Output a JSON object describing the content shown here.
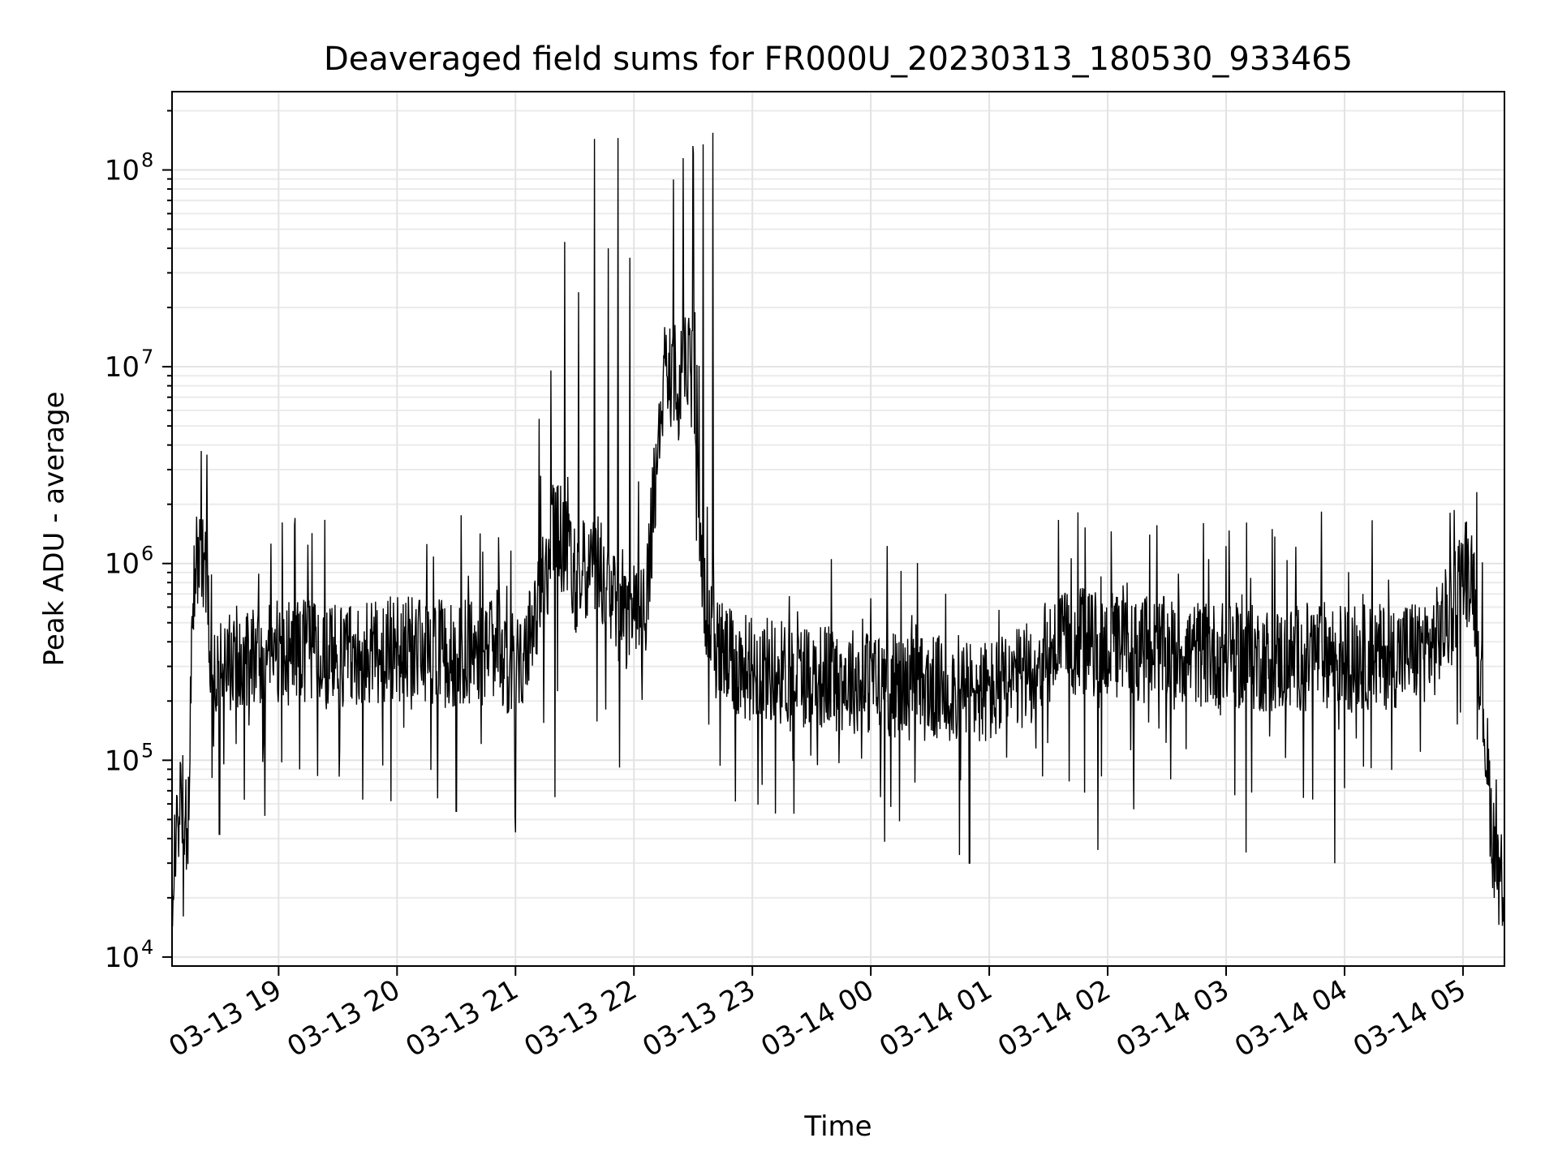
{
  "chart_data": {
    "type": "line",
    "title": "Deaveraged field sums for FR000U_20230313_180530_933465",
    "xlabel": "Time",
    "ylabel": "Peak ADU - average",
    "y_scale": "log",
    "ylim": [
      9000,
      250000000
    ],
    "xlim": [
      "2023-03-13 18:06",
      "2023-03-14 05:21"
    ],
    "grid": true,
    "line_color": "#000000",
    "x_ticks": [
      {
        "t": "2023-03-13 19:00",
        "label": "03-13 19"
      },
      {
        "t": "2023-03-13 20:00",
        "label": "03-13 20"
      },
      {
        "t": "2023-03-13 21:00",
        "label": "03-13 21"
      },
      {
        "t": "2023-03-13 22:00",
        "label": "03-13 22"
      },
      {
        "t": "2023-03-13 23:00",
        "label": "03-13 23"
      },
      {
        "t": "2023-03-14 00:00",
        "label": "03-14 00"
      },
      {
        "t": "2023-03-14 01:00",
        "label": "03-14 01"
      },
      {
        "t": "2023-03-14 02:00",
        "label": "03-14 02"
      },
      {
        "t": "2023-03-14 03:00",
        "label": "03-14 03"
      },
      {
        "t": "2023-03-14 04:00",
        "label": "03-14 04"
      },
      {
        "t": "2023-03-14 05:00",
        "label": "03-14 05"
      }
    ],
    "y_ticks": [
      {
        "value": 10000,
        "base": "10",
        "exp": "4"
      },
      {
        "value": 100000,
        "base": "10",
        "exp": "5"
      },
      {
        "value": 1000000,
        "base": "10",
        "exp": "6"
      },
      {
        "value": 10000000,
        "base": "10",
        "exp": "7"
      },
      {
        "value": 100000000,
        "base": "10",
        "exp": "8"
      }
    ],
    "series": [
      {
        "x": [
          "2023-03-13 18:06",
          "2023-03-13 18:08",
          "2023-03-13 18:10",
          "2023-03-13 18:12",
          "2023-03-13 18:14",
          "2023-03-13 18:16",
          "2023-03-13 18:18",
          "2023-03-13 18:22",
          "2023-03-13 18:26",
          "2023-03-13 18:30",
          "2023-03-13 18:35",
          "2023-03-13 18:40",
          "2023-03-13 18:45",
          "2023-03-13 18:50",
          "2023-03-13 18:55",
          "2023-03-13 19:00",
          "2023-03-13 19:10",
          "2023-03-13 19:20",
          "2023-03-13 19:30",
          "2023-03-13 19:40",
          "2023-03-13 19:50",
          "2023-03-13 20:00",
          "2023-03-13 20:10",
          "2023-03-13 20:20",
          "2023-03-13 20:30",
          "2023-03-13 20:40",
          "2023-03-13 20:50",
          "2023-03-13 21:00",
          "2023-03-13 21:05",
          "2023-03-13 21:10",
          "2023-03-13 21:15",
          "2023-03-13 21:20",
          "2023-03-13 21:25",
          "2023-03-13 21:30",
          "2023-03-13 21:35",
          "2023-03-13 21:40",
          "2023-03-13 21:45",
          "2023-03-13 21:50",
          "2023-03-13 21:55",
          "2023-03-13 22:00",
          "2023-03-13 22:05",
          "2023-03-13 22:10",
          "2023-03-13 22:15",
          "2023-03-13 22:20",
          "2023-03-13 22:25",
          "2023-03-13 22:30",
          "2023-03-13 22:35",
          "2023-03-13 22:40",
          "2023-03-13 22:45",
          "2023-03-13 22:50",
          "2023-03-13 23:00",
          "2023-03-13 23:15",
          "2023-03-13 23:30",
          "2023-03-13 23:45",
          "2023-03-14 00:00",
          "2023-03-14 00:15",
          "2023-03-14 00:30",
          "2023-03-14 00:45",
          "2023-03-14 01:00",
          "2023-03-14 01:15",
          "2023-03-14 01:30",
          "2023-03-14 01:45",
          "2023-03-14 02:00",
          "2023-03-14 02:15",
          "2023-03-14 02:30",
          "2023-03-14 02:45",
          "2023-03-14 03:00",
          "2023-03-14 03:15",
          "2023-03-14 03:30",
          "2023-03-14 03:45",
          "2023-03-14 04:00",
          "2023-03-14 04:15",
          "2023-03-14 04:30",
          "2023-03-14 04:45",
          "2023-03-14 04:55",
          "2023-03-14 05:00",
          "2023-03-14 05:05",
          "2023-03-14 05:10",
          "2023-03-14 05:15",
          "2023-03-14 05:20"
        ],
        "y": [
          20000,
          40000,
          70000,
          60000,
          35000,
          300000,
          1200000,
          1100000,
          350000,
          300000,
          320000,
          330000,
          350000,
          360000,
          340000,
          360000,
          350000,
          340000,
          330000,
          360000,
          350000,
          370000,
          360000,
          350000,
          340000,
          360000,
          350000,
          300000,
          350000,
          500000,
          900000,
          1500000,
          1200000,
          800000,
          900000,
          1100000,
          800000,
          600000,
          500000,
          600000,
          500000,
          2000000,
          8000000,
          9000000,
          10000000,
          9000000,
          700000,
          400000,
          350000,
          300000,
          300000,
          280000,
          270000,
          260000,
          250000,
          240000,
          230000,
          230000,
          220000,
          250000,
          350000,
          400000,
          380000,
          370000,
          360000,
          350000,
          340000,
          330000,
          320000,
          350000,
          340000,
          330000,
          350000,
          380000,
          600000,
          1000000,
          900000,
          200000,
          40000,
          25000
        ]
      }
    ],
    "bursts": [
      {
        "t": "2023-03-13 18:20",
        "peak": 1700000
      },
      {
        "t": "2023-03-13 18:26",
        "peak": 1000000
      },
      {
        "t": "2023-03-13 19:08",
        "peak": 1700000
      },
      {
        "t": "2023-03-13 20:15",
        "peak": 1300000
      },
      {
        "t": "2023-03-13 21:12",
        "peak": 5800000
      },
      {
        "t": "2023-03-13 21:18",
        "peak": 10500000
      },
      {
        "t": "2023-03-13 21:25",
        "peak": 45000000
      },
      {
        "t": "2023-03-13 21:32",
        "peak": 26000000
      },
      {
        "t": "2023-03-13 21:40",
        "peak": 150000000
      },
      {
        "t": "2023-03-13 21:47",
        "peak": 40000000
      },
      {
        "t": "2023-03-13 21:52",
        "peak": 155000000
      },
      {
        "t": "2023-03-13 21:58",
        "peak": 40000000
      },
      {
        "t": "2023-03-13 22:20",
        "peak": 90000000
      },
      {
        "t": "2023-03-13 22:25",
        "peak": 130000000
      },
      {
        "t": "2023-03-13 22:30",
        "peak": 140000000
      },
      {
        "t": "2023-03-13 22:35",
        "peak": 145000000
      },
      {
        "t": "2023-03-13 22:40",
        "peak": 155000000
      },
      {
        "t": "2023-03-14 01:35",
        "peak": 1800000
      },
      {
        "t": "2023-03-14 01:45",
        "peak": 2100000
      },
      {
        "t": "2023-03-14 03:00",
        "peak": 1300000
      },
      {
        "t": "2023-03-14 05:00",
        "peak": 1350000
      }
    ],
    "dips": [
      {
        "t": "2023-03-13 18:30",
        "low": 42000
      },
      {
        "t": "2023-03-13 19:57",
        "low": 62000
      },
      {
        "t": "2023-03-13 20:30",
        "low": 55000
      },
      {
        "t": "2023-03-13 21:00",
        "low": 43000
      },
      {
        "t": "2023-03-13 21:20",
        "low": 65000
      },
      {
        "t": "2023-03-13 23:05",
        "low": 75000
      },
      {
        "t": "2023-03-14 00:05",
        "low": 65000
      },
      {
        "t": "2023-03-14 00:45",
        "low": 33000
      },
      {
        "t": "2023-03-14 00:50",
        "low": 30000
      },
      {
        "t": "2023-03-14 01:55",
        "low": 35000
      },
      {
        "t": "2023-03-14 03:10",
        "low": 34000
      },
      {
        "t": "2023-03-14 03:55",
        "low": 30000
      }
    ]
  }
}
